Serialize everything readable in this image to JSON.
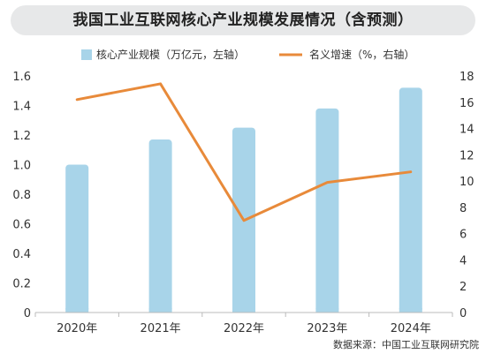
{
  "chart_data": {
    "type": "bar",
    "title": "我国工业互联网核心产业规模发展情况（含预测）",
    "categories": [
      "2020年",
      "2021年",
      "2022年",
      "2023年",
      "2024年"
    ],
    "series": [
      {
        "name": "核心产业规模（万亿元，左轴）",
        "type": "bar",
        "axis": "left",
        "values": [
          1.0,
          1.17,
          1.25,
          1.38,
          1.52
        ],
        "color": "#a8d4e9"
      },
      {
        "name": "名义增速（%，右轴）",
        "type": "line",
        "axis": "right",
        "values": [
          16.2,
          17.4,
          7.0,
          9.9,
          10.7
        ],
        "color": "#e88a3a"
      }
    ],
    "y_left": {
      "min": 0,
      "max": 1.6,
      "ticks": [
        "0",
        "0.2",
        "0.4",
        "0.6",
        "0.8",
        "1.0",
        "1.2",
        "1.4",
        "1.6"
      ]
    },
    "y_right": {
      "min": 0,
      "max": 18,
      "ticks": [
        "0",
        "2",
        "4",
        "6",
        "8",
        "10",
        "12",
        "14",
        "16",
        "18"
      ]
    },
    "grid": false,
    "legend_position": "top",
    "source": "数据来源：中国工业互联网研究院"
  }
}
